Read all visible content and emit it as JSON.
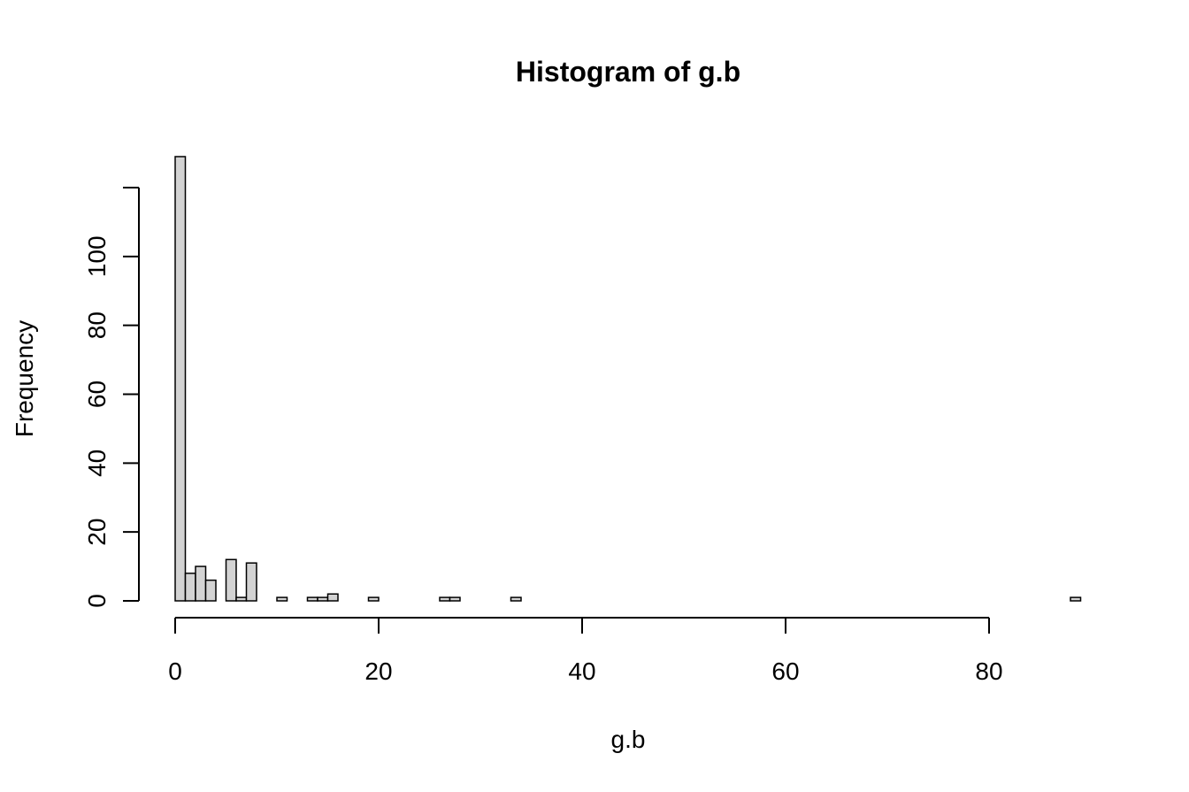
{
  "chart_data": {
    "type": "bar",
    "title": "Histogram of g.b",
    "xlabel": "g.b",
    "ylabel": "Frequency",
    "bin_width": 1,
    "x_ticks": [
      0,
      20,
      40,
      60,
      80
    ],
    "y_ticks": [
      0,
      20,
      40,
      60,
      80,
      100
    ],
    "x_tick_labels": [
      "0",
      "20",
      "40",
      "60",
      "80"
    ],
    "y_tick_labels": [
      "0",
      "20",
      "40",
      "60",
      "80",
      "100"
    ],
    "xlim": [
      0,
      89
    ],
    "ylim": [
      0,
      130
    ],
    "grid": false,
    "bar_color": "#d3d3d3",
    "bins": [
      {
        "start": 0,
        "end": 1,
        "count": 129
      },
      {
        "start": 1,
        "end": 2,
        "count": 8
      },
      {
        "start": 2,
        "end": 3,
        "count": 10
      },
      {
        "start": 3,
        "end": 4,
        "count": 6
      },
      {
        "start": 4,
        "end": 5,
        "count": 0
      },
      {
        "start": 5,
        "end": 6,
        "count": 12
      },
      {
        "start": 6,
        "end": 7,
        "count": 1
      },
      {
        "start": 7,
        "end": 8,
        "count": 11
      },
      {
        "start": 10,
        "end": 11,
        "count": 1
      },
      {
        "start": 13,
        "end": 14,
        "count": 1
      },
      {
        "start": 14,
        "end": 15,
        "count": 1
      },
      {
        "start": 15,
        "end": 16,
        "count": 2
      },
      {
        "start": 19,
        "end": 20,
        "count": 1
      },
      {
        "start": 26,
        "end": 27,
        "count": 1
      },
      {
        "start": 27,
        "end": 28,
        "count": 1
      },
      {
        "start": 33,
        "end": 34,
        "count": 1
      },
      {
        "start": 88,
        "end": 89,
        "count": 1
      }
    ]
  }
}
